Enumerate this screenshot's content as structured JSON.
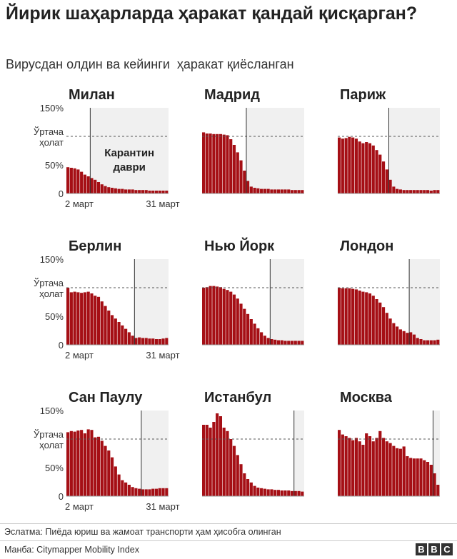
{
  "title": "Йирик шаҳарларда ҳаракат қандай қисқарган?",
  "subtitle": "Вирусдан олдин ва кейинги  ҳаракат қиёсланган",
  "footnote": "Эслатма: Пиёда юриш ва жамоат транспорти ҳам ҳисобга олинган",
  "source": "Манба: Citymapper Mobility Index",
  "logo": [
    "B",
    "B",
    "C"
  ],
  "colors": {
    "bar": "#a50f15",
    "shade": "#f0f0f0",
    "line": "#333333"
  },
  "chart_data": [
    {
      "type": "bar",
      "title": "Милан",
      "ylim": [
        0,
        150
      ],
      "yticks": [
        "150%",
        "50%",
        "0"
      ],
      "ref_label": [
        "Ўртача",
        "ҳолат"
      ],
      "ref_value": 100,
      "xticks": [
        "2 март",
        "31 март"
      ],
      "annotation": [
        "Карантин",
        "даври"
      ],
      "lockdown_index": 7,
      "values": [
        46,
        45,
        44,
        42,
        38,
        33,
        30,
        27,
        24,
        20,
        16,
        13,
        11,
        10,
        9,
        8,
        8,
        7,
        7,
        7,
        6,
        6,
        6,
        6,
        5,
        5,
        5,
        5,
        5,
        5
      ]
    },
    {
      "type": "bar",
      "title": "Мадрид",
      "ylim": [
        0,
        150
      ],
      "ref_value": 100,
      "lockdown_index": 13,
      "values": [
        107,
        105,
        105,
        104,
        104,
        104,
        103,
        102,
        95,
        85,
        72,
        58,
        40,
        22,
        12,
        10,
        9,
        8,
        8,
        8,
        7,
        7,
        7,
        7,
        7,
        7,
        6,
        6,
        6,
        6
      ]
    },
    {
      "type": "bar",
      "title": "Париж",
      "ylim": [
        0,
        150
      ],
      "ref_value": 100,
      "lockdown_index": 15,
      "values": [
        98,
        96,
        97,
        99,
        98,
        96,
        91,
        88,
        90,
        88,
        84,
        76,
        68,
        56,
        42,
        24,
        12,
        8,
        7,
        6,
        6,
        6,
        6,
        6,
        6,
        6,
        6,
        5,
        6,
        6
      ]
    },
    {
      "type": "bar",
      "title": "Берлин",
      "ylim": [
        0,
        150
      ],
      "yticks": [
        "150%",
        "50%",
        "0"
      ],
      "ref_label": [
        "Ўртача",
        "ҳолат"
      ],
      "ref_value": 100,
      "xticks": [
        "2 март",
        "31 март"
      ],
      "lockdown_index": 20,
      "values": [
        100,
        92,
        93,
        92,
        91,
        92,
        93,
        90,
        86,
        84,
        76,
        68,
        60,
        52,
        46,
        40,
        34,
        28,
        22,
        16,
        12,
        13,
        12,
        12,
        11,
        11,
        10,
        10,
        11,
        12
      ]
    },
    {
      "type": "bar",
      "title": "Нью Йорк",
      "ylim": [
        0,
        150
      ],
      "ref_value": 100,
      "lockdown_index": 20,
      "values": [
        100,
        101,
        103,
        103,
        102,
        101,
        98,
        96,
        93,
        88,
        81,
        72,
        63,
        54,
        45,
        37,
        29,
        22,
        16,
        12,
        10,
        9,
        8,
        8,
        7,
        7,
        7,
        7,
        7,
        7
      ]
    },
    {
      "type": "bar",
      "title": "Лондон",
      "ylim": [
        0,
        150
      ],
      "ref_value": 100,
      "lockdown_index": 21,
      "values": [
        100,
        99,
        99,
        99,
        98,
        97,
        95,
        93,
        92,
        90,
        86,
        80,
        74,
        66,
        56,
        46,
        38,
        32,
        27,
        24,
        21,
        22,
        18,
        12,
        10,
        8,
        8,
        8,
        8,
        9
      ]
    },
    {
      "type": "bar",
      "title": "Сан Паулу",
      "ylim": [
        0,
        150
      ],
      "yticks": [
        "150%",
        "50%",
        "0"
      ],
      "ref_label": [
        "Ўртача",
        "ҳолат"
      ],
      "ref_value": 100,
      "xticks": [
        "2 март",
        "31 март"
      ],
      "lockdown_index": 22,
      "values": [
        112,
        114,
        113,
        115,
        116,
        110,
        117,
        116,
        103,
        104,
        97,
        88,
        80,
        68,
        52,
        38,
        28,
        24,
        20,
        16,
        14,
        13,
        12,
        12,
        12,
        13,
        13,
        14,
        14,
        14
      ]
    },
    {
      "type": "bar",
      "title": "Истанбул",
      "ylim": [
        0,
        150
      ],
      "ref_value": 100,
      "lockdown_index": 27,
      "values": [
        125,
        125,
        120,
        130,
        145,
        140,
        120,
        114,
        100,
        88,
        72,
        56,
        40,
        30,
        24,
        18,
        15,
        14,
        13,
        12,
        12,
        11,
        11,
        10,
        10,
        10,
        9,
        9,
        9,
        8
      ]
    },
    {
      "type": "bar",
      "title": "Москва",
      "ylim": [
        0,
        150
      ],
      "ref_value": 100,
      "lockdown_index": 28,
      "values": [
        116,
        108,
        105,
        102,
        98,
        102,
        96,
        90,
        110,
        105,
        96,
        102,
        114,
        102,
        96,
        93,
        88,
        84,
        83,
        87,
        70,
        67,
        66,
        66,
        66,
        63,
        60,
        55,
        40,
        20
      ]
    }
  ]
}
